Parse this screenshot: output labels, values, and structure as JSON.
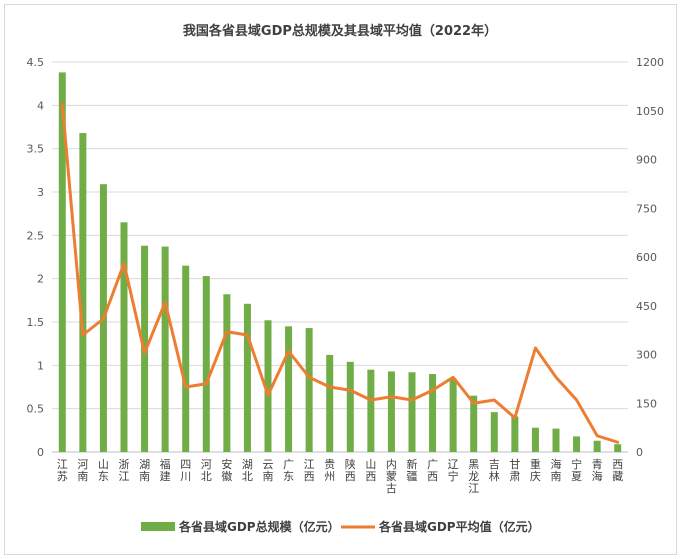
{
  "chart_data": {
    "type": "bar+line",
    "title": "我国各省县域GDP总规模及其县域平均值（2022年）",
    "categories": [
      "江苏",
      "河南",
      "山东",
      "浙江",
      "湖南",
      "福建",
      "四川",
      "河北",
      "安徽",
      "湖北",
      "云南",
      "广东",
      "江西",
      "贵州",
      "陕西",
      "山西",
      "内蒙古",
      "新疆",
      "广西",
      "辽宁",
      "黑龙江",
      "吉林",
      "甘肃",
      "重庆",
      "海南",
      "宁夏",
      "青海",
      "西藏"
    ],
    "series": [
      {
        "name": "各省县域GDP总规模（亿元）",
        "type": "bar",
        "axis": "left",
        "color": "#70ad47",
        "values": [
          4.38,
          3.68,
          3.09,
          2.65,
          2.38,
          2.37,
          2.15,
          2.03,
          1.82,
          1.71,
          1.52,
          1.45,
          1.43,
          1.12,
          1.04,
          0.95,
          0.93,
          0.92,
          0.9,
          0.85,
          0.65,
          0.46,
          0.41,
          0.28,
          0.27,
          0.18,
          0.13,
          0.09
        ]
      },
      {
        "name": "各省县域GDP平均值（亿元）",
        "type": "line",
        "axis": "right",
        "color": "#ed7d31",
        "values": [
          1070,
          360,
          410,
          580,
          305,
          460,
          200,
          210,
          370,
          360,
          175,
          310,
          230,
          200,
          190,
          160,
          170,
          160,
          190,
          230,
          150,
          160,
          105,
          320,
          230,
          160,
          50,
          30
        ]
      }
    ],
    "y_left": {
      "min": 0,
      "max": 4.5,
      "ticks": [
        "0",
        "0.5",
        "1",
        "1.5",
        "2",
        "2.5",
        "3",
        "3.5",
        "4",
        "4.5"
      ]
    },
    "y_right": {
      "min": 0,
      "max": 1200,
      "ticks": [
        "0",
        "150",
        "300",
        "450",
        "600",
        "750",
        "900",
        "1050",
        "1200"
      ]
    },
    "grid": true,
    "legend_position": "bottom"
  }
}
